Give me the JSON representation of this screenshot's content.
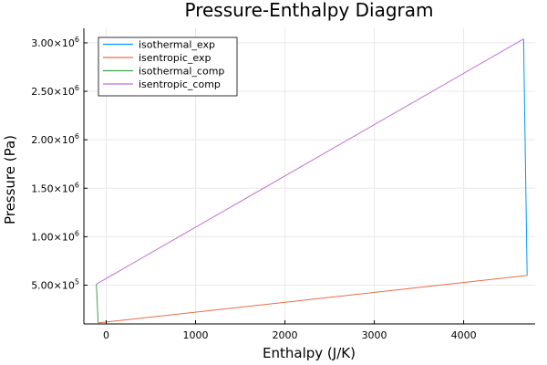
{
  "chart_data": {
    "type": "line",
    "title": "Pressure-Enthalpy Diagram",
    "xlabel": "Enthalpy (J/K)",
    "ylabel": "Pressure (Pa)",
    "xlim": [
      -250,
      4800
    ],
    "ylim": [
      100000,
      3150000
    ],
    "x_ticks": [
      {
        "value": 0,
        "label": "0"
      },
      {
        "value": 1000,
        "label": "1000"
      },
      {
        "value": 2000,
        "label": "2000"
      },
      {
        "value": 3000,
        "label": "3000"
      },
      {
        "value": 4000,
        "label": "4000"
      }
    ],
    "y_ticks": [
      {
        "value": 500000,
        "mantissa": "5.00",
        "exp": "5"
      },
      {
        "value": 1000000,
        "mantissa": "1.00",
        "exp": "6"
      },
      {
        "value": 1500000,
        "mantissa": "1.50",
        "exp": "6"
      },
      {
        "value": 2000000,
        "mantissa": "2.00",
        "exp": "6"
      },
      {
        "value": 2500000,
        "mantissa": "2.50",
        "exp": "6"
      },
      {
        "value": 3000000,
        "mantissa": "3.00",
        "exp": "6"
      }
    ],
    "grid": true,
    "legend_position": "top-left",
    "series": [
      {
        "name": "isothermal_exp",
        "color": "#009AFA",
        "x": [
          4670,
          4710
        ],
        "y": [
          3040000,
          600000
        ]
      },
      {
        "name": "isentropic_exp",
        "color": "#E36F47",
        "x": [
          4710,
          -90
        ],
        "y": [
          600000,
          110000
        ]
      },
      {
        "name": "isothermal_comp",
        "color": "#3EA44E",
        "x": [
          -90,
          -110
        ],
        "y": [
          110000,
          510000
        ]
      },
      {
        "name": "isentropic_comp",
        "color": "#C371D2",
        "x": [
          -110,
          4670
        ],
        "y": [
          510000,
          3040000
        ]
      }
    ]
  }
}
